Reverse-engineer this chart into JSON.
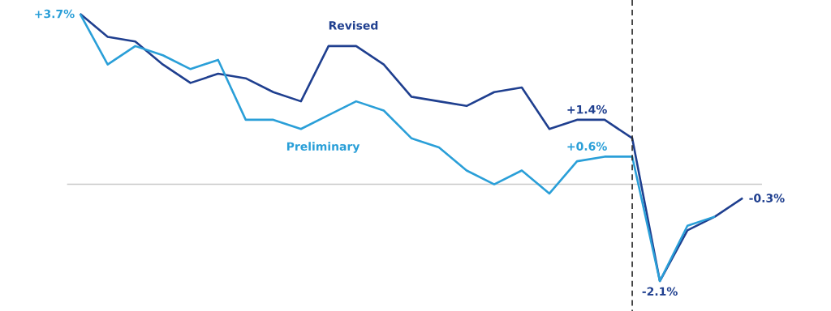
{
  "chart_data": {
    "type": "line",
    "categories": [
      null,
      null,
      null,
      null,
      null,
      null,
      null,
      null,
      null,
      null,
      null,
      null,
      null,
      null,
      null,
      null,
      null,
      null,
      null,
      null,
      null,
      null,
      null,
      null,
      null
    ],
    "series": [
      {
        "name": "Revised",
        "color": "#1f3f8f",
        "values": [
          3.7,
          3.2,
          3.1,
          2.6,
          2.2,
          2.4,
          2.3,
          2.0,
          1.8,
          3.0,
          3.0,
          2.6,
          1.9,
          1.8,
          1.7,
          2.0,
          2.1,
          1.2,
          1.4,
          1.4,
          1.0,
          -2.1,
          -1.0,
          -0.7,
          -0.3
        ],
        "value_labels": [
          null,
          null,
          null,
          null,
          null,
          null,
          null,
          null,
          null,
          null,
          null,
          null,
          null,
          null,
          null,
          null,
          null,
          null,
          null,
          "+1.4%",
          null,
          "-2.1%",
          null,
          null,
          "-0.3%"
        ]
      },
      {
        "name": "Preliminary",
        "color": "#2a9fd8",
        "values": [
          3.7,
          2.6,
          3.0,
          2.8,
          2.5,
          2.7,
          1.4,
          1.4,
          1.2,
          1.5,
          1.8,
          1.6,
          1.0,
          0.8,
          0.3,
          0.0,
          0.3,
          -0.2,
          0.5,
          0.6,
          0.6,
          -2.1,
          -0.9,
          -0.7,
          null
        ],
        "value_labels": [
          "+3.7%",
          null,
          null,
          null,
          null,
          null,
          null,
          null,
          null,
          null,
          null,
          null,
          null,
          null,
          null,
          null,
          null,
          null,
          null,
          "+0.6%",
          null,
          null,
          null,
          null,
          null
        ]
      }
    ],
    "ref_lines": [
      {
        "axis": "y",
        "value": 0,
        "color": "#c8c8c8",
        "line_style": "solid"
      }
    ],
    "marker": "none",
    "line_style": "solid",
    "legend": false
  }
}
